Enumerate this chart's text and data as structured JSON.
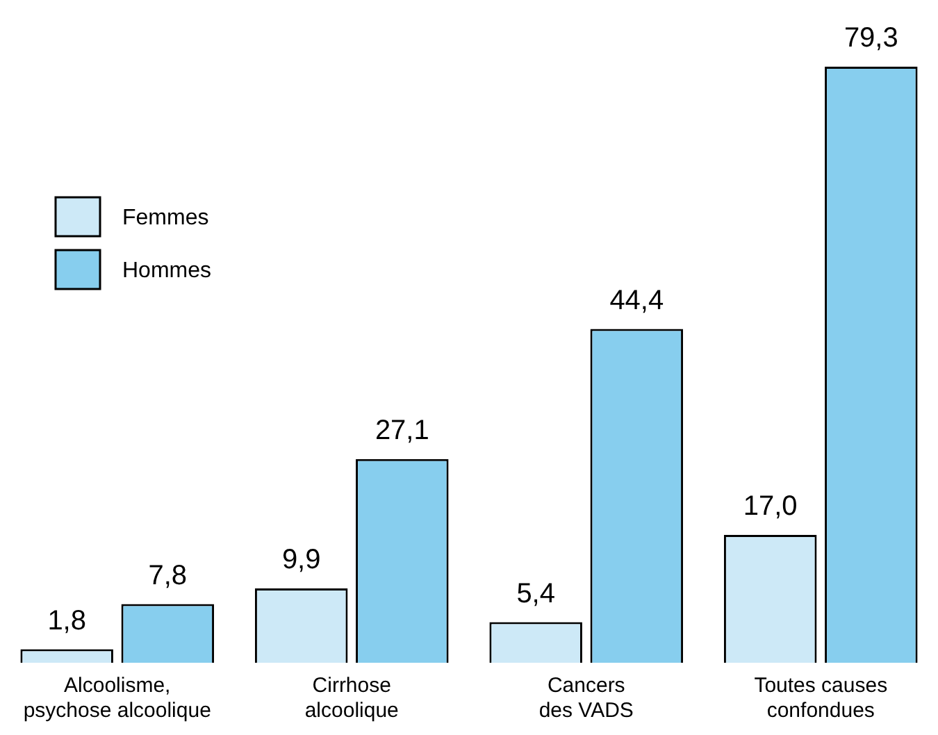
{
  "chart_data": {
    "type": "bar",
    "categories": [
      "Alcoolisme,\npsychose alcoolique",
      "Cirrhose\nalcoolique",
      "Cancers\ndes VADS",
      "Toutes causes\nconfondues"
    ],
    "series": [
      {
        "name": "Femmes",
        "color": "#cde9f7",
        "values": [
          1.8,
          9.9,
          5.4,
          17.0
        ],
        "value_labels": [
          "1,8",
          "9,9",
          "5,4",
          "17,0"
        ]
      },
      {
        "name": "Hommes",
        "color": "#87ceee",
        "values": [
          7.8,
          27.1,
          44.4,
          79.3
        ],
        "value_labels": [
          "7,8",
          "27,1",
          "44,4",
          "79,3"
        ]
      }
    ],
    "legend": "top left",
    "grid": false
  }
}
